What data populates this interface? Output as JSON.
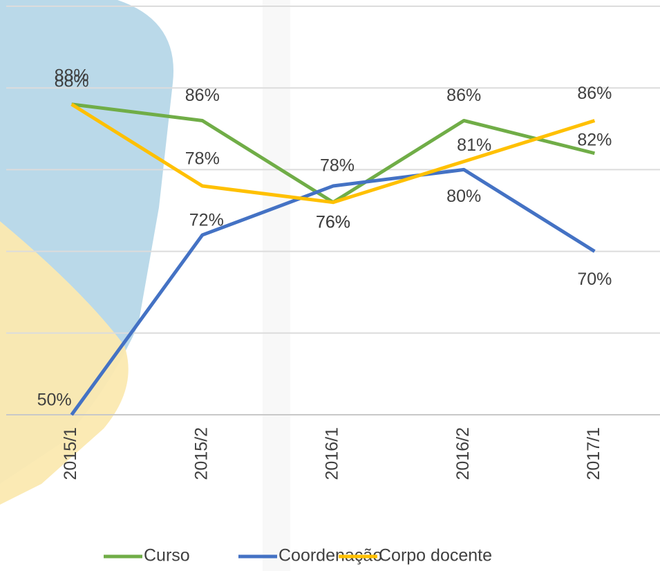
{
  "chart_data": {
    "type": "line",
    "categories": [
      "2015/1",
      "2015/2",
      "2016/1",
      "2016/2",
      "2017/1"
    ],
    "series": [
      {
        "name": "Curso",
        "color": "#70ad47",
        "values": [
          88,
          86,
          76,
          86,
          82
        ],
        "value_labels": [
          "88%",
          "86%",
          "76%",
          "86%",
          "82%"
        ]
      },
      {
        "name": "Coordenação",
        "color": "#4472c4",
        "values": [
          50,
          72,
          78,
          80,
          70
        ],
        "value_labels": [
          "50%",
          "72%",
          "78%",
          "80%",
          "70%"
        ]
      },
      {
        "name": "Corpo docente",
        "color": "#ffc000",
        "values": [
          88,
          78,
          76,
          81,
          86
        ],
        "value_labels": [
          "88%",
          "78%",
          "76%",
          "81%",
          "86%"
        ]
      }
    ],
    "ylim": [
      50,
      100
    ],
    "yticks": [
      50,
      60,
      70,
      80,
      90,
      100
    ],
    "grid": true,
    "legend": "bottom"
  }
}
